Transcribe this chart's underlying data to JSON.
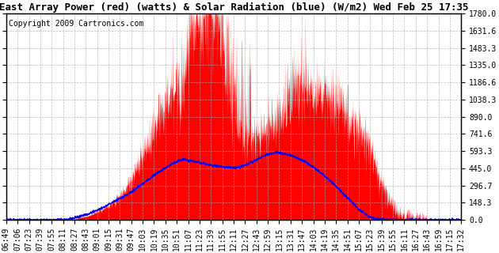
{
  "title": "East Array Power (red) (watts) & Solar Radiation (blue) (W/m2) Wed Feb 25 17:35",
  "copyright": "Copyright 2009 Cartronics.com",
  "y_max": 1780.0,
  "y_min": 0.0,
  "yticks": [
    0.0,
    148.3,
    296.7,
    445.0,
    593.3,
    741.6,
    890.0,
    1038.3,
    1186.6,
    1335.0,
    1483.3,
    1631.6,
    1780.0
  ],
  "x_labels": [
    "06:49",
    "07:06",
    "07:23",
    "07:39",
    "07:55",
    "08:11",
    "08:27",
    "08:43",
    "09:01",
    "09:15",
    "09:31",
    "09:47",
    "10:03",
    "10:19",
    "10:35",
    "10:51",
    "11:07",
    "11:23",
    "11:39",
    "11:55",
    "12:11",
    "12:27",
    "12:43",
    "12:59",
    "13:15",
    "13:31",
    "13:47",
    "14:03",
    "14:19",
    "14:35",
    "14:51",
    "15:07",
    "15:23",
    "15:39",
    "15:55",
    "16:11",
    "16:27",
    "16:43",
    "16:59",
    "17:15",
    "17:32"
  ],
  "bg_color": "#ffffff",
  "grid_color": "#aaaaaa",
  "red_color": "#ff0000",
  "blue_color": "#0000ff",
  "title_fontsize": 9,
  "copyright_fontsize": 7,
  "tick_fontsize": 7,
  "power_envelope": [
    0,
    0,
    0,
    0,
    0,
    0,
    0,
    0,
    20,
    40,
    80,
    120,
    180,
    280,
    420,
    600,
    820,
    950,
    1100,
    1250,
    1780,
    1780,
    1780,
    1700,
    900,
    750,
    680,
    700,
    780,
    860,
    920,
    980,
    1050,
    1100,
    1080,
    1020,
    950,
    880,
    780,
    650,
    400,
    200,
    80,
    30,
    10,
    0,
    0,
    0,
    0,
    0
  ],
  "radiation_points": [
    0,
    0,
    0,
    0,
    0,
    0,
    0,
    10,
    30,
    55,
    90,
    130,
    175,
    215,
    270,
    330,
    390,
    440,
    490,
    520,
    510,
    490,
    470,
    460,
    455,
    450,
    480,
    520,
    560,
    580,
    570,
    545,
    510,
    460,
    400,
    330,
    250,
    170,
    90,
    30,
    5,
    0,
    0,
    0,
    0,
    0,
    0,
    0,
    0,
    0
  ]
}
